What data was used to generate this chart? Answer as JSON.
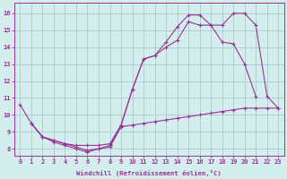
{
  "xlabel": "Windchill (Refroidissement éolien,°C)",
  "background_color": "#d4eeee",
  "grid_color": "#aacccc",
  "line_color": "#993399",
  "x_ticks": [
    0,
    1,
    2,
    3,
    4,
    5,
    6,
    7,
    8,
    9,
    10,
    11,
    12,
    13,
    14,
    15,
    16,
    17,
    18,
    19,
    20,
    21,
    22,
    23
  ],
  "y_ticks": [
    8,
    9,
    10,
    11,
    12,
    13,
    14,
    15,
    16
  ],
  "ylim": [
    7.6,
    16.6
  ],
  "xlim": [
    -0.5,
    23.5
  ],
  "line1_x": [
    0,
    1,
    2,
    3,
    4,
    5,
    6,
    7,
    8,
    9,
    10,
    11,
    12,
    13,
    14,
    15,
    16,
    17,
    18,
    19,
    20,
    21
  ],
  "line1_y": [
    10.6,
    9.5,
    8.7,
    8.4,
    8.2,
    8.0,
    7.8,
    8.0,
    8.2,
    9.4,
    11.5,
    13.3,
    13.5,
    14.3,
    15.2,
    15.9,
    15.9,
    15.3,
    14.3,
    14.2,
    13.0,
    11.1
  ],
  "line2_x": [
    1,
    2,
    3,
    4,
    5,
    6,
    7,
    8,
    9,
    10,
    11,
    12,
    13,
    14,
    15,
    16,
    17,
    18,
    19,
    20,
    21,
    22,
    23
  ],
  "line2_y": [
    9.5,
    8.7,
    8.5,
    8.3,
    8.2,
    8.2,
    8.2,
    8.3,
    9.4,
    11.5,
    13.3,
    13.5,
    14.0,
    14.4,
    15.5,
    15.3,
    15.3,
    15.3,
    16.0,
    16.0,
    15.3,
    11.1,
    10.4
  ],
  "line3_x": [
    1,
    2,
    3,
    4,
    5,
    6,
    7,
    8,
    9,
    10,
    11,
    12,
    13,
    14,
    15,
    16,
    17,
    18,
    19,
    20,
    21,
    22,
    23
  ],
  "line3_y": [
    9.5,
    8.7,
    8.5,
    8.3,
    8.1,
    7.9,
    8.0,
    8.1,
    9.3,
    9.4,
    9.5,
    9.6,
    9.7,
    9.8,
    9.9,
    10.0,
    10.1,
    10.2,
    10.3,
    10.4,
    10.4,
    10.4,
    10.4
  ]
}
